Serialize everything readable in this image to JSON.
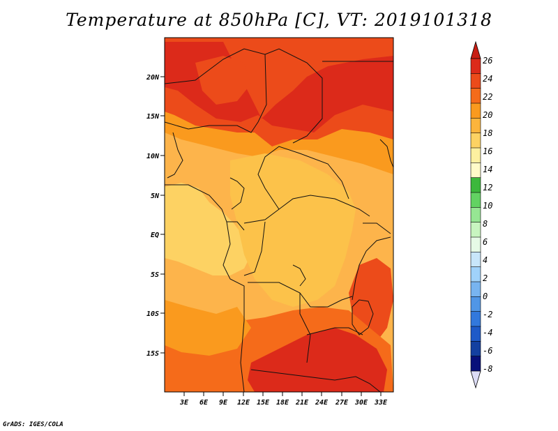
{
  "title": "Temperature at 850hPa [C], VT: 2019101318",
  "credit": "GrADS: IGES/COLA",
  "map": {
    "lat_labels": [
      "20N",
      "15N",
      "10N",
      "5N",
      "EQ",
      "5S",
      "10S",
      "15S"
    ],
    "lon_labels": [
      "3E",
      "6E",
      "9E",
      "12E",
      "15E",
      "18E",
      "21E",
      "24E",
      "27E",
      "30E",
      "33E"
    ],
    "region": "Central Africa",
    "background_color": "#fdb44b"
  },
  "colorbar": {
    "labels": [
      "26",
      "24",
      "22",
      "20",
      "18",
      "16",
      "14",
      "12",
      "10",
      "8",
      "6",
      "4",
      "2",
      "0",
      "-2",
      "-4",
      "-6",
      "-8"
    ],
    "colors": [
      "#dc2a1a",
      "#ec4b1a",
      "#f56b1a",
      "#fa9a1e",
      "#fcb43c",
      "#fdd263",
      "#fdf0a0",
      "#fffbc9",
      "#3cb83c",
      "#62d262",
      "#96e693",
      "#c8f5c0",
      "#e6fae6",
      "#c8e6fa",
      "#a0d2fa",
      "#78b4f0",
      "#5096e6",
      "#3278dc",
      "#1e5ac8",
      "#1440a0",
      "#08107a"
    ],
    "top_arrow_color": "#c81e14",
    "bottom_arrow_color": "#dcdcf5"
  }
}
